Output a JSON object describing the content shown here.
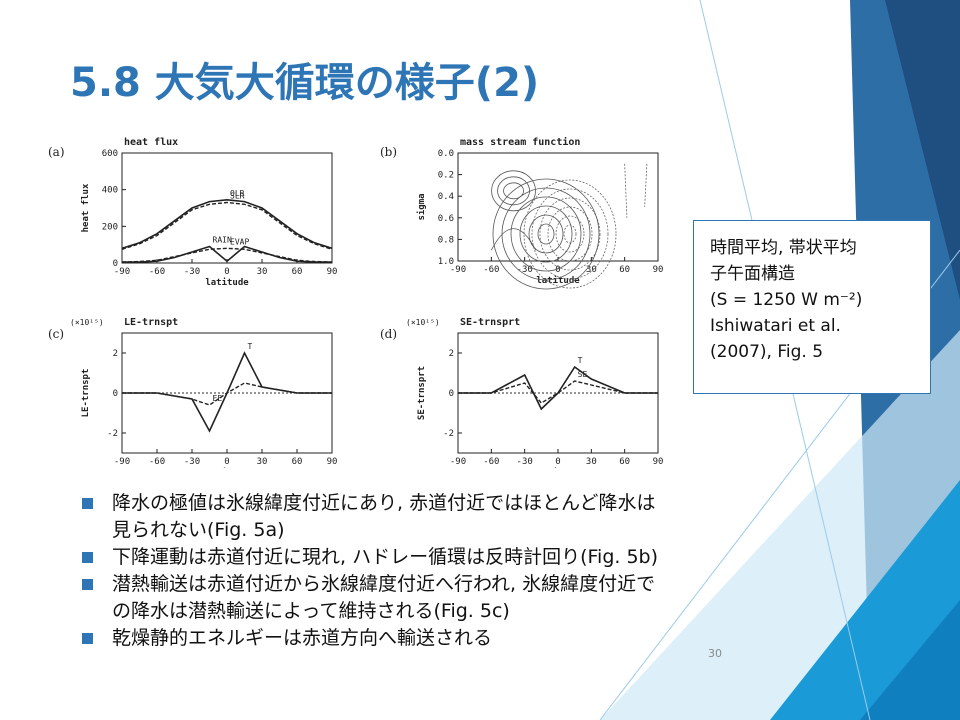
{
  "slide": {
    "title": "5.8 大気大循環の様子(2)",
    "page_number": "30",
    "accent_color": "#2e75b6"
  },
  "caption": {
    "lines": [
      "時間平均, 帯状平均",
      "子午面構造",
      "(S = 1250  W m⁻²)",
      "Ishiwatari et al.",
      "(2007), Fig. 5"
    ]
  },
  "bullets": [
    {
      "lines": [
        "降水の極値は氷線緯度付近にあり, 赤道付近ではほとんど降水は",
        "見られない(Fig. 5a)"
      ]
    },
    {
      "lines": [
        "下降運動は赤道付近に現れ, ハドレー循環は反時計回り(Fig. 5b)"
      ]
    },
    {
      "lines": [
        "潜熱輸送は赤道付近から氷線緯度付近へ行われ, 氷線緯度付近で",
        "の降水は潜熱輸送によって維持される(Fig. 5c)"
      ]
    },
    {
      "lines": [
        "乾燥静的エネルギーは赤道方向へ輸送される"
      ]
    }
  ],
  "chart_data": [
    {
      "type": "line",
      "panel": "(a)",
      "title": "heat flux",
      "xlabel": "latitude",
      "ylabel": "heat flux",
      "xlim": [
        -90,
        90
      ],
      "ylim": [
        0,
        600
      ],
      "xticks": [
        "-90",
        "-60",
        "-30",
        "0",
        "30",
        "60",
        "90"
      ],
      "yticks": [
        "0",
        "200",
        "400",
        "600"
      ],
      "x": [
        -90,
        -75,
        -60,
        -45,
        -30,
        -15,
        0,
        15,
        30,
        45,
        60,
        75,
        90
      ],
      "series": [
        {
          "name": "OLR",
          "values": [
            80,
            110,
            160,
            230,
            300,
            335,
            345,
            335,
            300,
            230,
            160,
            110,
            80
          ]
        },
        {
          "name": "SLR",
          "values": [
            75,
            105,
            150,
            220,
            290,
            320,
            330,
            320,
            290,
            220,
            150,
            105,
            75
          ]
        },
        {
          "name": "RAIN",
          "values": [
            5,
            5,
            10,
            30,
            60,
            90,
            10,
            90,
            60,
            30,
            10,
            5,
            5
          ]
        },
        {
          "name": "EVAP",
          "values": [
            5,
            8,
            15,
            35,
            55,
            75,
            80,
            75,
            55,
            35,
            15,
            8,
            5
          ]
        }
      ]
    },
    {
      "type": "contour",
      "panel": "(b)",
      "title": "mass stream function",
      "xlabel": "latitude",
      "ylabel": "sigma",
      "xlim": [
        -90,
        90
      ],
      "ylim": [
        1.0,
        0.0
      ],
      "xticks": [
        "-90",
        "-60",
        "-30",
        "0",
        "30",
        "60",
        "90"
      ],
      "yticks": [
        "0.0",
        "0.2",
        "0.4",
        "0.6",
        "0.8",
        "1.0"
      ]
    },
    {
      "type": "line",
      "panel": "(c)",
      "title": "LE-trnspt",
      "scale_label": "(×10¹⁵)",
      "xlabel": "latitude",
      "ylabel": "LE-trnspt",
      "xlim": [
        -90,
        90
      ],
      "ylim": [
        -3,
        3
      ],
      "xticks": [
        "-90",
        "-60",
        "-30",
        "0",
        "30",
        "60",
        "90"
      ],
      "yticks": [
        "2",
        "0",
        "-2"
      ],
      "x": [
        -90,
        -60,
        -30,
        -15,
        0,
        15,
        30,
        60,
        90
      ],
      "series": [
        {
          "name": "T",
          "values": [
            0,
            0,
            -0.3,
            -1.9,
            0,
            2.0,
            0.3,
            0,
            0
          ]
        },
        {
          "name": "EE",
          "values": [
            0,
            0,
            -0.3,
            -0.6,
            0,
            0.5,
            0.3,
            0,
            0
          ]
        }
      ]
    },
    {
      "type": "line",
      "panel": "(d)",
      "title": "SE-trnsprt",
      "scale_label": "(×10¹⁵)",
      "xlabel": "latitude",
      "ylabel": "SE-trnsprt",
      "xlim": [
        -90,
        90
      ],
      "ylim": [
        -3,
        3
      ],
      "xticks": [
        "-90",
        "-60",
        "-30",
        "0",
        "30",
        "60",
        "90"
      ],
      "yticks": [
        "2",
        "0",
        "-2"
      ],
      "x": [
        -90,
        -60,
        -30,
        -15,
        0,
        15,
        30,
        60,
        90
      ],
      "series": [
        {
          "name": "T",
          "values": [
            0,
            0,
            0.9,
            -0.8,
            0,
            1.3,
            0.7,
            0,
            0
          ]
        },
        {
          "name": "SE",
          "values": [
            0,
            0,
            0.5,
            -0.5,
            0,
            0.6,
            0.4,
            0,
            0
          ]
        }
      ]
    }
  ]
}
